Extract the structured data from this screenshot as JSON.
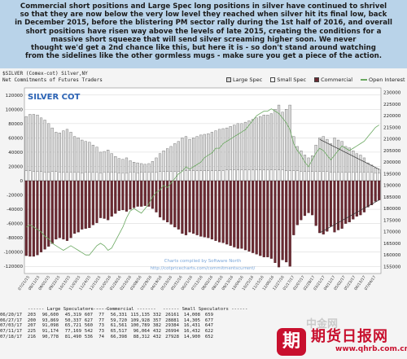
{
  "commentary": {
    "lines": [
      "Commercial short positions and Large Spec long positions in silver have continued to shrivel",
      "so that they are now below the very low level they reached when silver hit its final low, back",
      "in December 2015, before the blistering PM sector rally during the 1st half of 2016, and overall",
      "short positions have risen way above the levels of late 2015, creating the conditions for a",
      "massive short squeeze that will send silver screaming higher soon. We never",
      "thought we'd get a 2nd chance like this, but here it is - so don't stand around watching",
      "from the sidelines like the other gormless mugs - make sure you get a piece of the action."
    ]
  },
  "header": {
    "symbol": "$SILVER (Comex-cot) Silver,NY",
    "subtitle": "Net Commitments of Futures Traders"
  },
  "legend": [
    {
      "label": "Large Spec",
      "color": "#d9d9d9"
    },
    {
      "label": "Small Spec",
      "color": "#ffffff"
    },
    {
      "label": "Commercial",
      "color": "#6b2a32"
    },
    {
      "label": "Open Interest",
      "color": "#6aa860"
    }
  ],
  "chart_data": {
    "type": "bar",
    "title": "SILVER COT",
    "credit": "Charts compiled by Software North",
    "url": "http://cotpricecharts.com/commitmentscurrent/",
    "left_ticks": [
      120000,
      100000,
      80000,
      60000,
      40000,
      20000,
      0,
      -20000,
      -40000,
      -60000,
      -80000,
      -100000,
      -120000
    ],
    "right_ticks": [
      230000,
      225000,
      220000,
      215000,
      210000,
      205000,
      200000,
      195000,
      190000,
      185000,
      180000,
      175000,
      170000,
      165000,
      160000,
      155000
    ],
    "left_range": [
      -130000,
      130000
    ],
    "right_range": [
      152000,
      232000
    ],
    "x_labels": [
      "07/21/15",
      "08/11/15",
      "09/01/15",
      "09/22/15",
      "10/13/15",
      "11/03/15",
      "11/24/15",
      "12/15/15",
      "01/05/16",
      "01/26/16",
      "02/16/16",
      "03/08/16",
      "03/29/16",
      "04/19/16",
      "05/10/16",
      "05/31/16",
      "06/21/16",
      "07/12/16",
      "08/02/16",
      "08/23/16",
      "09/13/16",
      "10/04/16",
      "10/25/16",
      "11/15/16",
      "12/06/16",
      "12/27/16",
      "01/17/17",
      "02/07/17",
      "02/28/17",
      "03/21/17",
      "04/11/17",
      "05/02/17",
      "05/23/17",
      "06/13/17",
      "07/04/17"
    ],
    "series": [
      {
        "name": "Large Spec",
        "values": [
          90000,
          93000,
          93000,
          92000,
          88000,
          85000,
          80000,
          74000,
          68000,
          67000,
          70000,
          72000,
          68000,
          62000,
          60000,
          57000,
          55000,
          54000,
          50000,
          47000,
          40000,
          41000,
          43000,
          38000,
          34000,
          31000,
          30000,
          32000,
          28000,
          26000,
          25000,
          24000,
          23000,
          24000,
          27000,
          32000,
          38000,
          42000,
          45000,
          48000,
          52000,
          55000,
          60000,
          62000,
          58000,
          60000,
          62000,
          64000,
          65000,
          66000,
          68000,
          70000,
          72000,
          73000,
          74000,
          76000,
          78000,
          80000,
          80000,
          82000,
          84000,
          86000,
          88000,
          90000,
          92000,
          92000,
          94000,
          100000,
          106000,
          96000,
          100000,
          106000,
          62000,
          48000,
          42000,
          36000,
          32000,
          35000,
          50000,
          60000,
          62000,
          58000,
          52000,
          60000,
          57000,
          55000,
          48000,
          46000,
          42000,
          38000,
          36000,
          32000,
          25000,
          22000,
          18000,
          16000
        ]
      },
      {
        "name": "Small Spec",
        "values": [
          14000,
          14000,
          13000,
          13000,
          13000,
          12000,
          12000,
          13000,
          13000,
          12000,
          12000,
          12000,
          12000,
          12000,
          12000,
          11000,
          12000,
          12000,
          12000,
          12000,
          11000,
          12000,
          12000,
          12000,
          12000,
          11000,
          11000,
          11000,
          12000,
          12000,
          11000,
          12000,
          12000,
          12000,
          12000,
          12000,
          13000,
          13000,
          13000,
          13000,
          13000,
          13000,
          14000,
          14000,
          14000,
          14000,
          14000,
          14000,
          14000,
          14000,
          14000,
          14000,
          14000,
          14000,
          15000,
          15000,
          15000,
          15000,
          15000,
          15000,
          15000,
          15000,
          15000,
          15000,
          15000,
          15000,
          15000,
          15000,
          15000,
          15000,
          14000,
          14000,
          14000,
          14000,
          13000,
          13000,
          13000,
          13000,
          13000,
          13000,
          13000,
          13000,
          12000,
          12000,
          12000,
          12000,
          12000,
          12000,
          12000,
          12000,
          12000,
          12000,
          12000,
          12000,
          11000,
          11000
        ]
      },
      {
        "name": "Commercial",
        "values": [
          -105000,
          -106000,
          -106000,
          -104000,
          -100000,
          -96000,
          -92000,
          -88000,
          -82000,
          -80000,
          -82000,
          -84000,
          -80000,
          -74000,
          -72000,
          -68000,
          -67000,
          -66000,
          -62000,
          -59000,
          -52000,
          -53000,
          -55000,
          -50000,
          -46000,
          -42000,
          -41000,
          -43000,
          -40000,
          -38000,
          -36000,
          -36000,
          -35000,
          -36000,
          -39000,
          -44000,
          -51000,
          -55000,
          -58000,
          -61000,
          -65000,
          -68000,
          -74000,
          -76000,
          -72000,
          -74000,
          -76000,
          -78000,
          -79000,
          -80000,
          -82000,
          -84000,
          -86000,
          -87000,
          -89000,
          -91000,
          -93000,
          -95000,
          -95000,
          -97000,
          -99000,
          -101000,
          -103000,
          -105000,
          -107000,
          -107000,
          -109000,
          -115000,
          -121000,
          -111000,
          -114000,
          -120000,
          -76000,
          -62000,
          -55000,
          -49000,
          -45000,
          -48000,
          -63000,
          -73000,
          -75000,
          -71000,
          -64000,
          -72000,
          -69000,
          -67000,
          -60000,
          -58000,
          -54000,
          -50000,
          -48000,
          -44000,
          -37000,
          -34000,
          -29000,
          -27000
        ]
      },
      {
        "name": "Open Interest",
        "values": [
          172000,
          173000,
          172000,
          171000,
          170000,
          168000,
          167000,
          165000,
          164000,
          163000,
          162000,
          163000,
          164000,
          163000,
          162000,
          161000,
          160000,
          160000,
          162000,
          164000,
          165000,
          164000,
          162000,
          163000,
          166000,
          169000,
          172000,
          176000,
          179000,
          180000,
          179000,
          178000,
          180000,
          182000,
          185000,
          187000,
          188000,
          190000,
          189000,
          191000,
          193000,
          195000,
          196000,
          198000,
          197000,
          198000,
          199000,
          200000,
          202000,
          203000,
          204000,
          206000,
          206000,
          208000,
          209000,
          210000,
          211000,
          212000,
          213000,
          214000,
          216000,
          218000,
          220000,
          221000,
          222000,
          222000,
          223000,
          222000,
          221000,
          219000,
          217000,
          214000,
          208000,
          205000,
          203000,
          200000,
          198000,
          201000,
          204000,
          206000,
          205000,
          203000,
          201000,
          203000,
          205000,
          207000,
          206000,
          205000,
          206000,
          207000,
          208000,
          209000,
          211000,
          213000,
          215000,
          216000
        ]
      }
    ],
    "trendlines": [
      {
        "name": "Large Spec trend",
        "from": [
          79,
          58000
        ],
        "to": [
          95,
          16000
        ]
      },
      {
        "name": "Commercial trend",
        "from": [
          79,
          -73000
        ],
        "to": [
          95,
          -27000
        ]
      }
    ]
  },
  "table": {
    "group_headers": [
      "------ Large Speculators ------",
      "------- Commercial -------",
      "------ Small Speculators ------"
    ],
    "rows": [
      [
        "06/20/17",
        "203",
        "96,600",
        "45,319",
        "607",
        "77",
        "56,331",
        "115,135",
        "332",
        "26161",
        "14,008",
        "659"
      ],
      [
        "06/27/17",
        "200",
        "93,869",
        "50,337",
        "627",
        "77",
        "59,720",
        "109,928",
        "357",
        "28881",
        "14,305",
        "677"
      ],
      [
        "07/03/17",
        "207",
        "91,098",
        "65,721",
        "560",
        "73",
        "61,561",
        "100,789",
        "382",
        "29384",
        "16,431",
        "647"
      ],
      [
        "07/11/17",
        "225",
        "91,174",
        "77,169",
        "542",
        "73",
        "65,517",
        "96,064",
        "432",
        "26994",
        "16,432",
        "622"
      ],
      [
        "07/18/17",
        "216",
        "90,778",
        "81,490",
        "536",
        "74",
        "66,398",
        "88,312",
        "432",
        "27928",
        "14,900",
        "652"
      ]
    ]
  },
  "watermark": {
    "logo_char": "期",
    "name": "期货日报网",
    "url": "www.qhrb.com.cn",
    "ghost": "中金网"
  }
}
